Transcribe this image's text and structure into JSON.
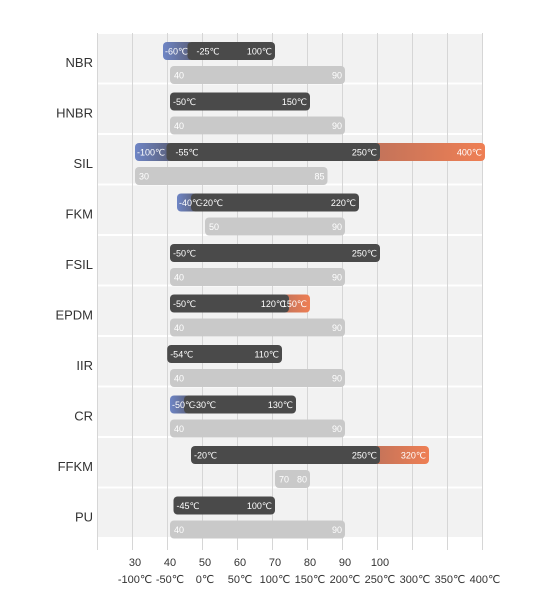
{
  "chart_data": {
    "type": "bar",
    "title": "",
    "xlabel": "",
    "ylabel": "",
    "hardness_axis": {
      "ticks": [
        "30",
        "40",
        "50",
        "60",
        "70",
        "80",
        "90",
        "100"
      ],
      "range": [
        30,
        100
      ]
    },
    "temperature_axis": {
      "ticks": [
        "-100℃",
        "-50℃",
        "0℃",
        "50℃",
        "100℃",
        "150℃",
        "200℃",
        "250℃",
        "300℃",
        "350℃",
        "400℃"
      ],
      "range": [
        -100,
        400
      ]
    },
    "colors": {
      "temperature_bar": "#4a4a4a",
      "cold_extension": "#6f86c6",
      "hot_extension": "#e87d55",
      "hardness_bar": "#c9c9c9",
      "row_background": "#f2f2f2"
    },
    "series": [
      {
        "material": "NBR",
        "cold_min": -60,
        "temp_min": -25,
        "temp_max": 100,
        "hot_max": null,
        "hardness_min": 40,
        "hardness_max": 90,
        "labels": {
          "cold_min": "-60℃",
          "temp_min": "-25℃",
          "temp_max": "100℃",
          "hot_max": "",
          "hardness_min": "40",
          "hardness_max": "90"
        }
      },
      {
        "material": "HNBR",
        "cold_min": null,
        "temp_min": -50,
        "temp_max": 150,
        "hot_max": null,
        "hardness_min": 40,
        "hardness_max": 90,
        "labels": {
          "cold_min": "",
          "temp_min": "-50℃",
          "temp_max": "150℃",
          "hot_max": "",
          "hardness_min": "40",
          "hardness_max": "90"
        }
      },
      {
        "material": "SIL",
        "cold_min": -100,
        "temp_min": -55,
        "temp_max": 250,
        "hot_max": 400,
        "hardness_min": 30,
        "hardness_max": 85,
        "labels": {
          "cold_min": "-100℃",
          "temp_min": "-55℃",
          "temp_max": "250℃",
          "hot_max": "400℃",
          "hardness_min": "30",
          "hardness_max": "85"
        }
      },
      {
        "material": "FKM",
        "cold_min": -40,
        "temp_min": -20,
        "temp_max": 220,
        "hot_max": null,
        "hardness_min": 50,
        "hardness_max": 90,
        "labels": {
          "cold_min": "-40℃",
          "temp_min": "-20℃",
          "temp_max": "220℃",
          "hot_max": "",
          "hardness_min": "50",
          "hardness_max": "90"
        }
      },
      {
        "material": "FSIL",
        "cold_min": null,
        "temp_min": -50,
        "temp_max": 250,
        "hot_max": null,
        "hardness_min": 40,
        "hardness_max": 90,
        "labels": {
          "cold_min": "",
          "temp_min": "-50℃",
          "temp_max": "250℃",
          "hot_max": "",
          "hardness_min": "40",
          "hardness_max": "90"
        }
      },
      {
        "material": "EPDM",
        "cold_min": null,
        "temp_min": -50,
        "temp_max": 120,
        "hot_max": 150,
        "hardness_min": 40,
        "hardness_max": 90,
        "labels": {
          "cold_min": "",
          "temp_min": "-50℃",
          "temp_max": "120℃",
          "hot_max": "150℃",
          "hardness_min": "40",
          "hardness_max": "90"
        }
      },
      {
        "material": "IIR",
        "cold_min": null,
        "temp_min": -54,
        "temp_max": 110,
        "hot_max": null,
        "hardness_min": 40,
        "hardness_max": 90,
        "labels": {
          "cold_min": "",
          "temp_min": "-54℃",
          "temp_max": "110℃",
          "hot_max": "",
          "hardness_min": "40",
          "hardness_max": "90"
        }
      },
      {
        "material": "CR",
        "cold_min": -50,
        "temp_min": -30,
        "temp_max": 130,
        "hot_max": null,
        "hardness_min": 40,
        "hardness_max": 90,
        "labels": {
          "cold_min": "-50℃",
          "temp_min": "-30℃",
          "temp_max": "130℃",
          "hot_max": "",
          "hardness_min": "40",
          "hardness_max": "90"
        }
      },
      {
        "material": "FFKM",
        "cold_min": null,
        "temp_min": -20,
        "temp_max": 250,
        "hot_max": 320,
        "hardness_min": 70,
        "hardness_max": 80,
        "labels": {
          "cold_min": "",
          "temp_min": "-20℃",
          "temp_max": "250℃",
          "hot_max": "320℃",
          "hardness_min": "70",
          "hardness_max": "80"
        }
      },
      {
        "material": "PU",
        "cold_min": null,
        "temp_min": -45,
        "temp_max": 100,
        "hot_max": null,
        "hardness_min": 40,
        "hardness_max": 90,
        "labels": {
          "cold_min": "",
          "temp_min": "-45℃",
          "temp_max": "100℃",
          "hot_max": "",
          "hardness_min": "40",
          "hardness_max": "90"
        }
      }
    ]
  }
}
